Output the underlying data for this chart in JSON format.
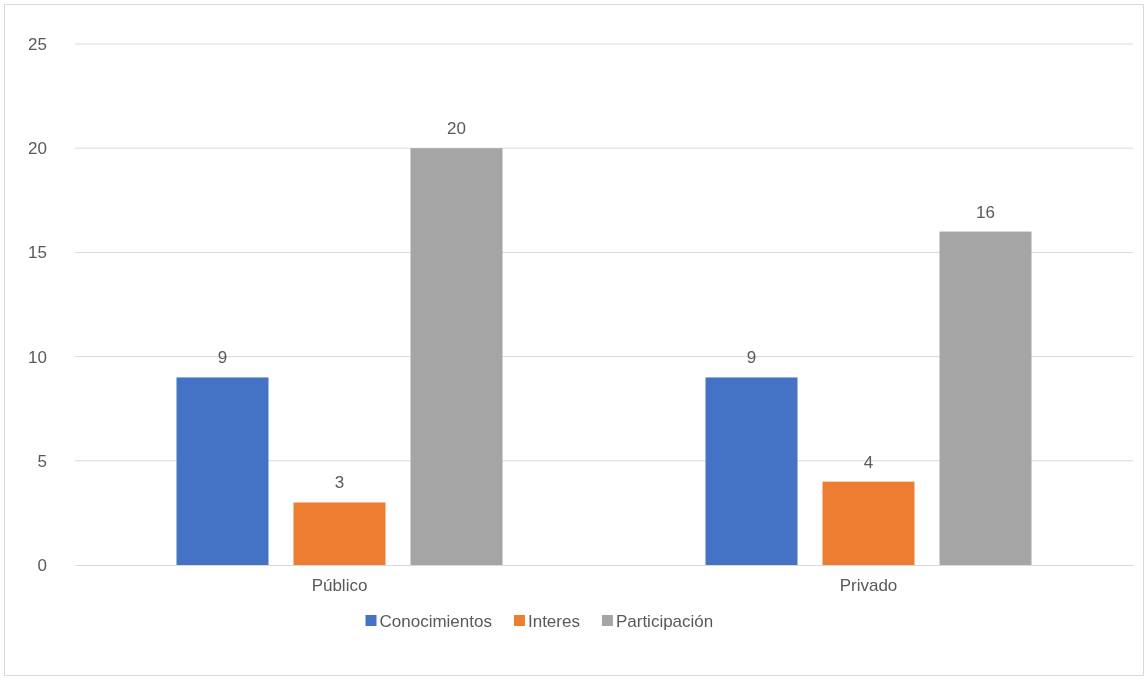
{
  "chart_data": {
    "type": "bar",
    "categories": [
      "Público",
      "Privado"
    ],
    "series": [
      {
        "name": "Conocimientos",
        "color": "#4472c4",
        "values": [
          9,
          9
        ]
      },
      {
        "name": "Interes",
        "color": "#ed7d31",
        "values": [
          3,
          4
        ]
      },
      {
        "name": "Participación",
        "color": "#a5a5a5",
        "values": [
          20,
          16
        ]
      }
    ],
    "ylim": [
      0,
      25
    ],
    "yticks": [
      0,
      5,
      10,
      15,
      20,
      25
    ],
    "grid": "y",
    "legend": "bottom",
    "data_labels": true
  }
}
